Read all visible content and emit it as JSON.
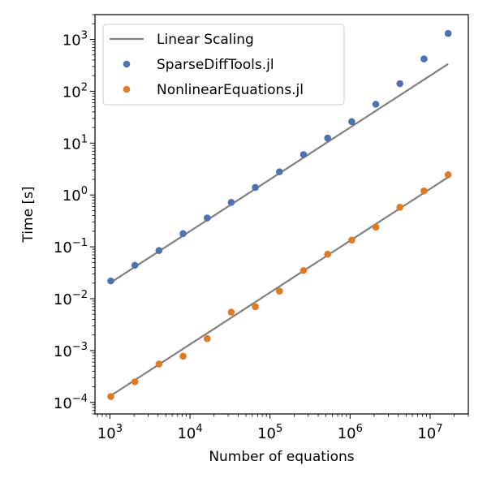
{
  "chart_data": {
    "type": "scatter",
    "xscale": "log",
    "yscale": "log",
    "xlim": [
      650,
      30000000
    ],
    "ylim": [
      6e-05,
      3000
    ],
    "xlabel": "Number of equations",
    "ylabel": "Time [s]",
    "xticks": [
      {
        "base": "10",
        "exp": "3",
        "value": 1000
      },
      {
        "base": "10",
        "exp": "4",
        "value": 10000
      },
      {
        "base": "10",
        "exp": "5",
        "value": 100000
      },
      {
        "base": "10",
        "exp": "6",
        "value": 1000000
      },
      {
        "base": "10",
        "exp": "7",
        "value": 10000000
      }
    ],
    "yticks": [
      {
        "base": "10",
        "exp": "−4",
        "value": 0.0001
      },
      {
        "base": "10",
        "exp": "−3",
        "value": 0.001
      },
      {
        "base": "10",
        "exp": "−2",
        "value": 0.01
      },
      {
        "base": "10",
        "exp": "−1",
        "value": 0.1
      },
      {
        "base": "10",
        "exp": "0",
        "value": 1
      },
      {
        "base": "10",
        "exp": "1",
        "value": 10
      },
      {
        "base": "10",
        "exp": "2",
        "value": 100
      },
      {
        "base": "10",
        "exp": "3",
        "value": 1000
      }
    ],
    "grid": false,
    "legend_position": "top-left",
    "x": [
      1024,
      2048,
      4096,
      8192,
      16384,
      32768,
      65536,
      131072,
      262144,
      524288,
      1048576,
      2097152,
      4194304,
      8388608,
      16777216
    ],
    "lines": [
      {
        "name": "Linear Scaling",
        "color": "#808080",
        "x": [
          1024,
          16777216
        ],
        "y": [
          0.0205,
          335
        ]
      },
      {
        "name": "Linear Scaling",
        "color": "#808080",
        "x": [
          1024,
          16777216
        ],
        "y": [
          0.000135,
          2.2
        ]
      }
    ],
    "series": [
      {
        "name": "SparseDiffTools.jl",
        "color": "#4c72b0",
        "values": [
          0.022,
          0.044,
          0.085,
          0.18,
          0.36,
          0.72,
          1.4,
          2.8,
          6.0,
          12.5,
          26,
          56,
          140,
          420,
          1300
        ]
      },
      {
        "name": "NonlinearEquations.jl",
        "color": "#e07b25",
        "values": [
          0.00013,
          0.00025,
          0.00055,
          0.00078,
          0.0017,
          0.0055,
          0.007,
          0.014,
          0.035,
          0.072,
          0.135,
          0.24,
          0.58,
          1.2,
          2.45
        ]
      }
    ],
    "legend": [
      {
        "label": "Linear Scaling",
        "kind": "line",
        "color": "#808080"
      },
      {
        "label": "SparseDiffTools.jl",
        "kind": "marker",
        "color": "#4c72b0"
      },
      {
        "label": "NonlinearEquations.jl",
        "kind": "marker",
        "color": "#e07b25"
      }
    ]
  }
}
